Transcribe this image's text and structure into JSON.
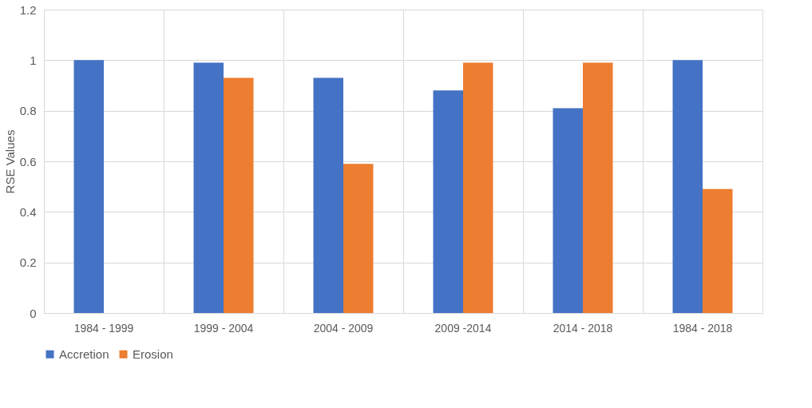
{
  "chart_data": {
    "type": "bar",
    "ylabel": "RSE Values",
    "categories": [
      "1984 - 1999",
      "1999 - 2004",
      "2004 - 2009",
      "2009 -2014",
      "2014 - 2018",
      "1984 - 2018"
    ],
    "series": [
      {
        "name": "Accretion",
        "color": "#4472c4",
        "values": [
          1.0,
          0.99,
          0.93,
          0.88,
          0.81,
          1.0
        ]
      },
      {
        "name": "Erosion",
        "color": "#ed7d31",
        "values": [
          null,
          0.93,
          0.59,
          0.99,
          0.99,
          0.49
        ]
      }
    ],
    "ylim": [
      0,
      1.2
    ],
    "yticks": [
      0,
      0.2,
      0.4,
      0.6,
      0.8,
      1,
      1.2
    ],
    "grid": true,
    "legend": "bottom"
  }
}
